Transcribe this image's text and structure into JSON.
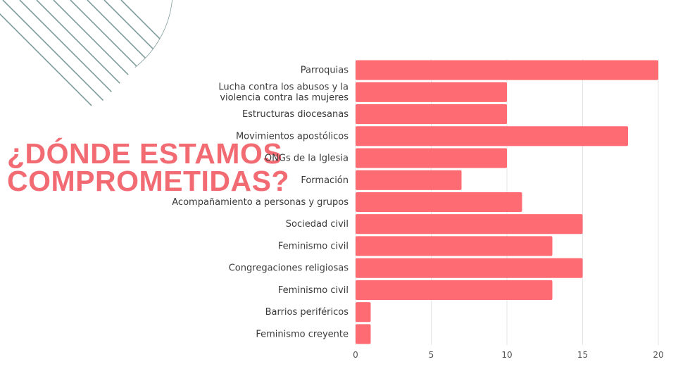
{
  "slide": {
    "title_line1": "¿DÓNDE ESTAMOS",
    "title_line2": "COMPROMETIDAS?"
  },
  "colors": {
    "bar": "#ff6b72",
    "title": "#f26b73",
    "decor": "#7f9c9a",
    "grid": "#e6e6e6"
  },
  "chart_data": {
    "type": "bar",
    "orientation": "horizontal",
    "categories": [
      [
        "Parroquias"
      ],
      [
        "Lucha contra los abusos y la",
        "violencia contra las mujeres"
      ],
      [
        "Estructuras diocesanas"
      ],
      [
        "Movimientos apostólicos"
      ],
      [
        "ONGs de la Iglesia"
      ],
      [
        "Formación"
      ],
      [
        "Acompañamiento a personas y grupos"
      ],
      [
        "Sociedad civil"
      ],
      [
        "Feminismo civil"
      ],
      [
        "Congregaciones religiosas"
      ],
      [
        "Feminismo civil"
      ],
      [
        "Barrios periféricos"
      ],
      [
        "Feminismo creyente"
      ]
    ],
    "values": [
      20,
      10,
      10,
      18,
      10,
      7,
      11,
      15,
      13,
      15,
      13,
      1,
      1
    ],
    "xlim": [
      0,
      20
    ],
    "xticks": [
      0,
      5,
      10,
      15,
      20
    ],
    "grid": true,
    "legend": "none",
    "title": "",
    "xlabel": "",
    "ylabel": ""
  }
}
